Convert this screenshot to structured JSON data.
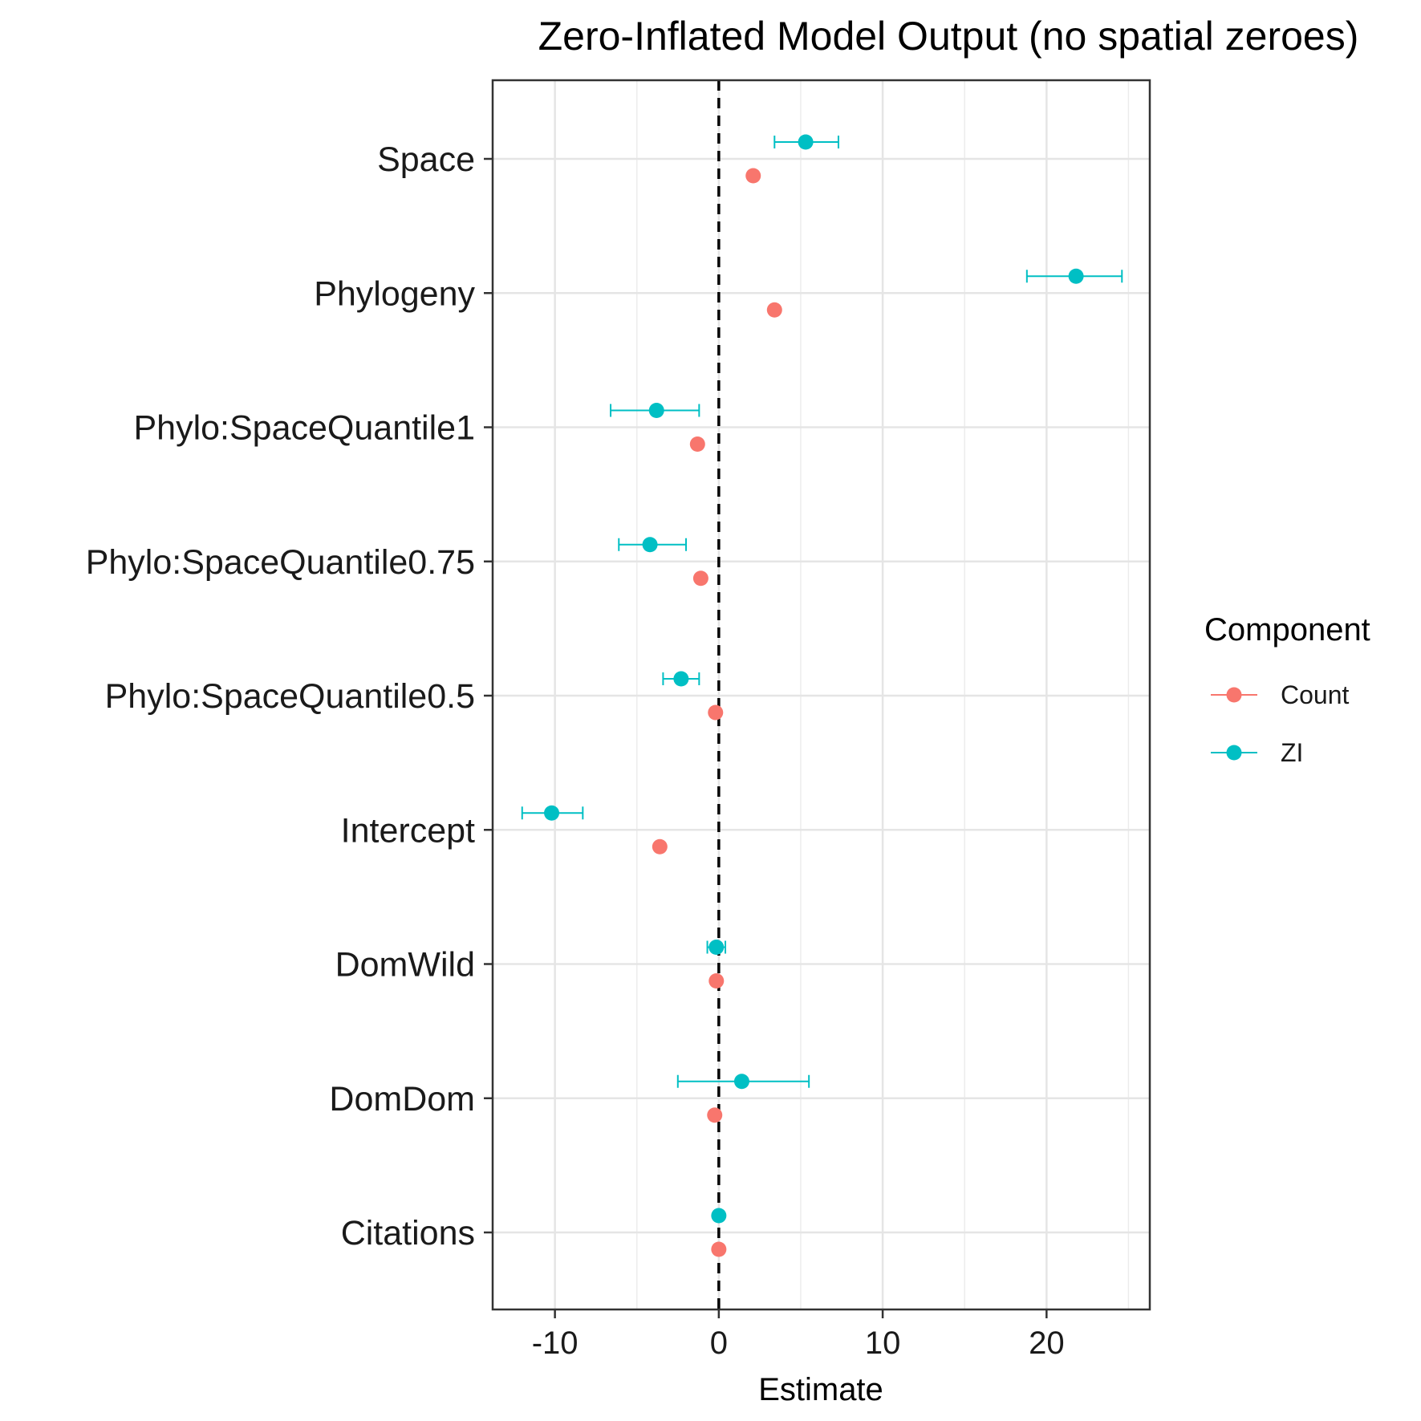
{
  "chart_data": {
    "type": "scatter",
    "title": "Zero-Inflated Model Output (no spatial zeroes)",
    "xlabel": "Estimate",
    "ylabel": "",
    "xlim": [
      -13.8,
      26.3
    ],
    "xticks": [
      -10,
      0,
      10,
      20
    ],
    "tick_labels": [
      "-10",
      "0",
      "10",
      "20"
    ],
    "grid": true,
    "reference_line": {
      "x": 0,
      "style": "dashed",
      "color": "#000000"
    },
    "categories": [
      "Space",
      "Phylogeny",
      "Phylo:SpaceQuantile1",
      "Phylo:SpaceQuantile0.75",
      "Phylo:SpaceQuantile0.5",
      "Intercept",
      "DomWild",
      "DomDom",
      "Citations"
    ],
    "legend": {
      "title": "Component",
      "position": "right",
      "items": [
        {
          "label": "Count",
          "color": "#F8766D"
        },
        {
          "label": "ZI",
          "color": "#00BFC4"
        }
      ]
    },
    "series": [
      {
        "name": "Count",
        "color": "#F8766D",
        "values": [
          2.1,
          3.4,
          -1.3,
          -1.1,
          -0.2,
          -3.6,
          -0.15,
          -0.25,
          0.0
        ],
        "lower": [
          1.9,
          3.2,
          -1.5,
          -1.3,
          -0.35,
          -3.8,
          -0.3,
          -0.4,
          -0.1
        ],
        "upper": [
          2.3,
          3.6,
          -1.1,
          -0.9,
          -0.05,
          -3.4,
          0.0,
          -0.1,
          0.1
        ]
      },
      {
        "name": "ZI",
        "color": "#00BFC4",
        "values": [
          5.3,
          21.8,
          -3.8,
          -4.2,
          -2.3,
          -10.2,
          -0.15,
          1.4,
          0.0
        ],
        "lower": [
          3.4,
          18.8,
          -6.6,
          -6.1,
          -3.4,
          -12.0,
          -0.7,
          -2.5,
          -0.2
        ],
        "upper": [
          7.3,
          24.6,
          -1.2,
          -2.0,
          -1.2,
          -8.3,
          0.4,
          5.5,
          0.2
        ]
      }
    ]
  }
}
